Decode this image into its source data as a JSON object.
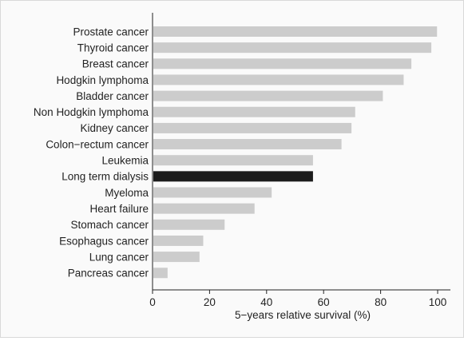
{
  "chart_data": {
    "type": "bar",
    "orientation": "horizontal",
    "categories": [
      "Prostate cancer",
      "Thyroid cancer",
      "Breast cancer",
      "Hodgkin lymphoma",
      "Bladder cancer",
      "Non Hodgkin lymphoma",
      "Kidney cancer",
      "Colon−rectum cancer",
      "Leukemia",
      "Long term dialysis",
      "Myeloma",
      "Heart failure",
      "Stomach cancer",
      "Esophagus cancer",
      "Lung cancer",
      "Pancreas cancer"
    ],
    "values": [
      99.5,
      97.5,
      90.5,
      87.8,
      80.5,
      70.8,
      69.5,
      66,
      56,
      56,
      41.5,
      35.5,
      25,
      17.5,
      16.2,
      5
    ],
    "highlight_category": "Long term dialysis",
    "colors": {
      "bar": "#cccccc",
      "highlight": "#1c1c1c",
      "axis": "#222222"
    },
    "xlabel": "5−years relative survival (%)",
    "xticks": [
      0,
      20,
      40,
      60,
      80,
      100
    ],
    "xlim": [
      0,
      104
    ],
    "grid": false
  }
}
